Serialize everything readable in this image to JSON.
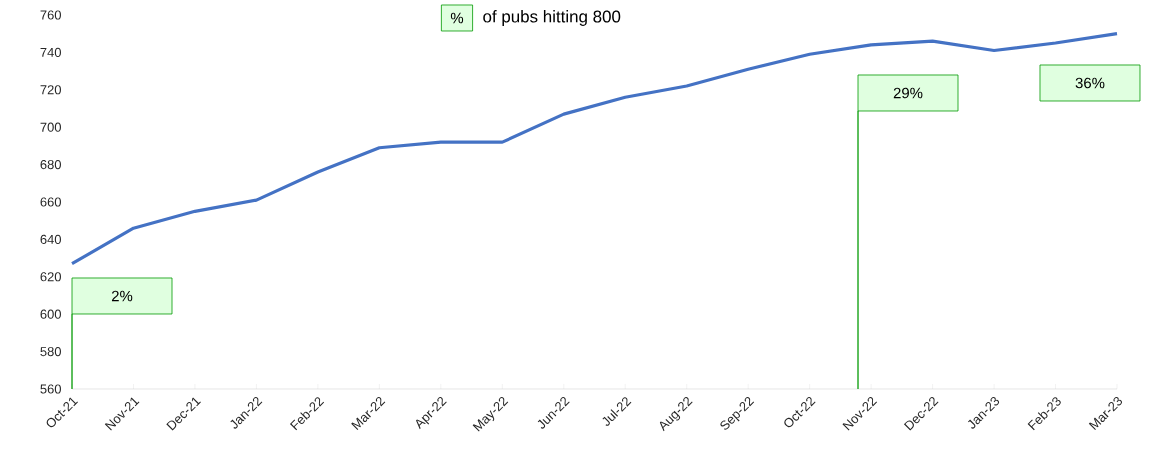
{
  "chart_data": {
    "type": "line",
    "title": "of pubs hitting 800",
    "categories": [
      "Oct-21",
      "Nov-21",
      "Dec-21",
      "Jan-22",
      "Feb-22",
      "Mar-22",
      "Apr-22",
      "May-22",
      "Jun-22",
      "Jul-22",
      "Aug-22",
      "Sep-22",
      "Oct-22",
      "Nov-22",
      "Dec-22",
      "Jan-23",
      "Feb-23",
      "Mar-23"
    ],
    "series": [
      {
        "color": "#4472c4",
        "values": [
          627,
          646,
          655,
          661,
          676,
          689,
          692,
          692,
          707,
          716,
          722,
          731,
          739,
          744,
          746,
          741,
          745,
          750
        ]
      }
    ],
    "ylim": [
      560,
      760
    ],
    "yticks": [
      560,
      580,
      600,
      620,
      640,
      660,
      680,
      700,
      720,
      740,
      760
    ],
    "marker": "none",
    "line_style": "solid",
    "annotations": [
      "%",
      "2%",
      "29%",
      "36%"
    ]
  }
}
